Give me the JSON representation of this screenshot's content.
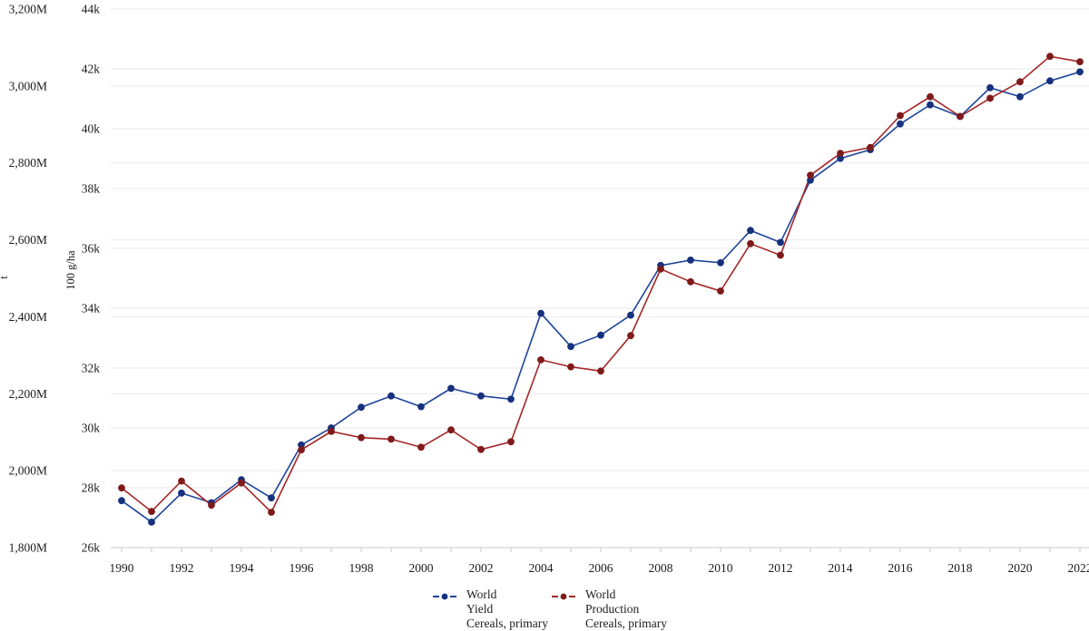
{
  "chart_data": {
    "type": "line",
    "x": [
      1990,
      1991,
      1992,
      1993,
      1994,
      1995,
      1996,
      1997,
      1998,
      1999,
      2000,
      2001,
      2002,
      2003,
      2004,
      2005,
      2006,
      2007,
      2008,
      2009,
      2010,
      2011,
      2012,
      2013,
      2014,
      2015,
      2016,
      2017,
      2018,
      2019,
      2020,
      2021,
      2022
    ],
    "x_tick_labels": [
      "1990",
      "1992",
      "1994",
      "1996",
      "1998",
      "2000",
      "2002",
      "2004",
      "2006",
      "2008",
      "2010",
      "2012",
      "2014",
      "2016",
      "2018",
      "2020",
      "2022"
    ],
    "x_tick_values": [
      1990,
      1992,
      1994,
      1996,
      1998,
      2000,
      2002,
      2004,
      2006,
      2008,
      2010,
      2012,
      2014,
      2016,
      2018,
      2020,
      2022
    ],
    "grid": "on",
    "legend_position": "bottom",
    "axes": {
      "production": {
        "title": "t",
        "range": [
          1800,
          3200
        ],
        "ticks": [
          {
            "label": "3,200M",
            "value": 3200
          },
          {
            "label": "3,000M",
            "value": 3000
          },
          {
            "label": "2,800M",
            "value": 2800
          },
          {
            "label": "2,600M",
            "value": 2600
          },
          {
            "label": "2,400M",
            "value": 2400
          },
          {
            "label": "2,200M",
            "value": 2200
          },
          {
            "label": "2,000M",
            "value": 2000
          },
          {
            "label": "1,800M",
            "value": 1800
          }
        ]
      },
      "yield": {
        "title": "100 g/ha",
        "range": [
          26000,
          44000
        ],
        "ticks": [
          {
            "label": "44k",
            "value": 44000
          },
          {
            "label": "42k",
            "value": 42000
          },
          {
            "label": "40k",
            "value": 40000
          },
          {
            "label": "38k",
            "value": 38000
          },
          {
            "label": "36k",
            "value": 36000
          },
          {
            "label": "34k",
            "value": 34000
          },
          {
            "label": "32k",
            "value": 32000
          },
          {
            "label": "30k",
            "value": 30000
          },
          {
            "label": "28k",
            "value": 28000
          },
          {
            "label": "26k",
            "value": 26000
          }
        ]
      }
    },
    "series": [
      {
        "name": "World Yield Cereals, primary",
        "axis": "yield",
        "unit": "100 g/ha",
        "line_color": "#1e459b",
        "marker_color": "#16317d",
        "values": [
          27570,
          26850,
          27820,
          27500,
          28270,
          27660,
          29430,
          30000,
          30690,
          31070,
          30710,
          31320,
          31070,
          30960,
          33830,
          32720,
          33100,
          33770,
          35430,
          35610,
          35520,
          36600,
          36200,
          38280,
          39010,
          39300,
          40160,
          40800,
          40410,
          41370,
          41070,
          41600,
          41900
        ]
      },
      {
        "name": "World Production Cereals, primary",
        "axis": "production",
        "unit": "Mt",
        "line_color": "#a32626",
        "marker_color": "#7f1a1a",
        "values": [
          1955,
          1894,
          1973,
          1910,
          1968,
          1892,
          2054,
          2102,
          2086,
          2082,
          2061,
          2106,
          2055,
          2075,
          2288,
          2270,
          2259,
          2351,
          2524,
          2491,
          2467,
          2590,
          2560,
          2768,
          2825,
          2840,
          2923,
          2972,
          2921,
          2968,
          3011,
          3077,
          3063
        ]
      }
    ]
  },
  "legend": {
    "yield": {
      "line1": "World",
      "line2": "Yield",
      "line3": "Cereals, primary"
    },
    "production": {
      "line1": "World",
      "line2": "Production",
      "line3": "Cereals, primary"
    }
  },
  "colors": {
    "grid": "#eaeaea",
    "axis_line": "#c9c9c9",
    "text": "#1c1c1c"
  }
}
